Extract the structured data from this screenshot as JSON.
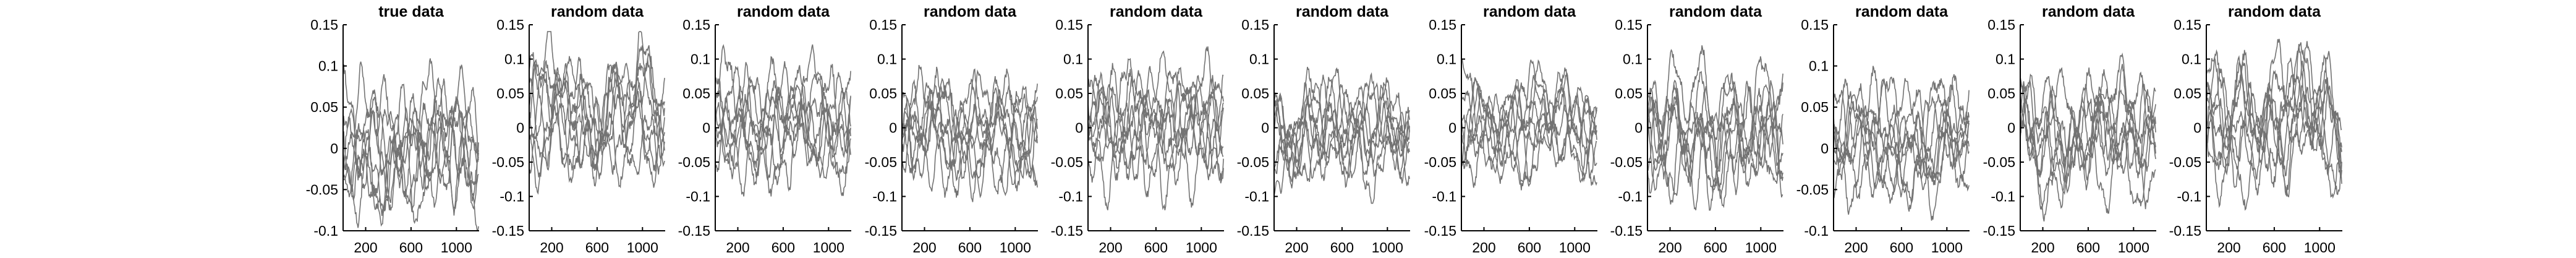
{
  "figure": {
    "line_color": "#737373",
    "axis_color": "#000000",
    "background": "#ffffff"
  },
  "chart_data": [
    {
      "type": "line",
      "title": "true data",
      "xlim": [
        1,
        1200
      ],
      "ylim": [
        -0.1,
        0.15
      ],
      "xticks": [
        200,
        600,
        1000
      ],
      "yticks": [
        -0.1,
        -0.05,
        0,
        0.05,
        0.1,
        0.15
      ],
      "series_count": 8,
      "y_range_of_traces": [
        -0.1,
        0.11
      ],
      "grid": false,
      "legend": "none"
    },
    {
      "type": "line",
      "title": "random data",
      "xlim": [
        1,
        1200
      ],
      "ylim": [
        -0.15,
        0.15
      ],
      "xticks": [
        200,
        600,
        1000
      ],
      "yticks": [
        -0.15,
        -0.1,
        -0.05,
        0,
        0.05,
        0.1,
        0.15
      ],
      "series_count": 8,
      "y_range_of_traces": [
        -0.1,
        0.14
      ],
      "grid": false,
      "legend": "none"
    },
    {
      "type": "line",
      "title": "random data",
      "xlim": [
        1,
        1200
      ],
      "ylim": [
        -0.15,
        0.15
      ],
      "xticks": [
        200,
        600,
        1000
      ],
      "yticks": [
        -0.15,
        -0.1,
        -0.05,
        0,
        0.05,
        0.1,
        0.15
      ],
      "series_count": 8,
      "y_range_of_traces": [
        -0.1,
        0.13
      ],
      "grid": false,
      "legend": "none"
    },
    {
      "type": "line",
      "title": "random data",
      "xlim": [
        1,
        1200
      ],
      "ylim": [
        -0.15,
        0.15
      ],
      "xticks": [
        200,
        600,
        1000
      ],
      "yticks": [
        -0.15,
        -0.1,
        -0.05,
        0,
        0.05,
        0.1,
        0.15
      ],
      "series_count": 8,
      "y_range_of_traces": [
        -0.12,
        0.12
      ],
      "grid": false,
      "legend": "none"
    },
    {
      "type": "line",
      "title": "random data",
      "xlim": [
        1,
        1200
      ],
      "ylim": [
        -0.15,
        0.15
      ],
      "xticks": [
        200,
        600,
        1000
      ],
      "yticks": [
        -0.15,
        -0.1,
        -0.05,
        0,
        0.05,
        0.1,
        0.15
      ],
      "series_count": 8,
      "y_range_of_traces": [
        -0.12,
        0.12
      ],
      "grid": false,
      "legend": "none"
    },
    {
      "type": "line",
      "title": "random data",
      "xlim": [
        1,
        1200
      ],
      "ylim": [
        -0.15,
        0.15
      ],
      "xticks": [
        200,
        600,
        1000
      ],
      "yticks": [
        -0.15,
        -0.1,
        -0.05,
        0,
        0.05,
        0.1,
        0.15
      ],
      "series_count": 8,
      "y_range_of_traces": [
        -0.11,
        0.1
      ],
      "grid": false,
      "legend": "none"
    },
    {
      "type": "line",
      "title": "random data",
      "xlim": [
        1,
        1200
      ],
      "ylim": [
        -0.15,
        0.15
      ],
      "xticks": [
        200,
        600,
        1000
      ],
      "yticks": [
        -0.15,
        -0.1,
        -0.05,
        0,
        0.05,
        0.1,
        0.15
      ],
      "series_count": 8,
      "y_range_of_traces": [
        -0.1,
        0.1
      ],
      "grid": false,
      "legend": "none"
    },
    {
      "type": "line",
      "title": "random data",
      "xlim": [
        1,
        1200
      ],
      "ylim": [
        -0.15,
        0.15
      ],
      "xticks": [
        200,
        600,
        1000
      ],
      "yticks": [
        -0.15,
        -0.1,
        -0.05,
        0,
        0.05,
        0.1,
        0.15
      ],
      "series_count": 8,
      "y_range_of_traces": [
        -0.12,
        0.12
      ],
      "grid": false,
      "legend": "none"
    },
    {
      "type": "line",
      "title": "random data",
      "xlim": [
        1,
        1200
      ],
      "ylim": [
        -0.1,
        0.15
      ],
      "xticks": [
        200,
        600,
        1000
      ],
      "yticks": [
        -0.1,
        -0.05,
        0,
        0.05,
        0.1,
        0.15
      ],
      "series_count": 8,
      "y_range_of_traces": [
        -0.1,
        0.1
      ],
      "grid": false,
      "legend": "none"
    },
    {
      "type": "line",
      "title": "random data",
      "xlim": [
        1,
        1200
      ],
      "ylim": [
        -0.15,
        0.15
      ],
      "xticks": [
        200,
        600,
        1000
      ],
      "yticks": [
        -0.15,
        -0.1,
        -0.05,
        0,
        0.05,
        0.1,
        0.15
      ],
      "series_count": 8,
      "y_range_of_traces": [
        -0.14,
        0.11
      ],
      "grid": false,
      "legend": "none"
    },
    {
      "type": "line",
      "title": "random data",
      "xlim": [
        1,
        1200
      ],
      "ylim": [
        -0.15,
        0.15
      ],
      "xticks": [
        200,
        600,
        1000
      ],
      "yticks": [
        -0.15,
        -0.1,
        -0.05,
        0,
        0.05,
        0.1,
        0.15
      ],
      "series_count": 8,
      "y_range_of_traces": [
        -0.12,
        0.14
      ],
      "grid": false,
      "legend": "none"
    }
  ]
}
